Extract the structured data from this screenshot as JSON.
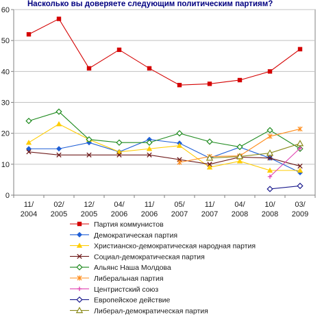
{
  "chart_data": {
    "type": "line",
    "title": "Насколько вы доверяете следующим политическим партиям?",
    "categories": [
      [
        "11/",
        "2004"
      ],
      [
        "02/",
        "2005"
      ],
      [
        "12/",
        "2005"
      ],
      [
        "04/",
        "2006"
      ],
      [
        "11/",
        "2006"
      ],
      [
        "05/",
        "2007"
      ],
      [
        "11/",
        "2007"
      ],
      [
        "04/",
        "2008"
      ],
      [
        "10/",
        "2008"
      ],
      [
        "03/",
        "2009"
      ]
    ],
    "ylim": [
      0,
      60
    ],
    "yticks": [
      0,
      10,
      20,
      30,
      40,
      50,
      60
    ],
    "grid": true,
    "legend_position": "bottom",
    "series": [
      {
        "name": "Партия коммунистов",
        "color": "#d40000",
        "marker": "square",
        "values": [
          52,
          57,
          41,
          47,
          41,
          35.6,
          36,
          37.2,
          40,
          47.2
        ]
      },
      {
        "name": "Демократическая партия",
        "color": "#1f5fd6",
        "marker": "diamond",
        "values": [
          15,
          15,
          17,
          14,
          18,
          16.8,
          12,
          15.5,
          12,
          7.3
        ]
      },
      {
        "name": "Христианско-демократическая народная партия",
        "color": "#ffcc00",
        "marker": "triangle",
        "values": [
          17,
          23,
          18,
          14,
          15,
          16,
          9,
          11,
          8,
          8
        ]
      },
      {
        "name": "Социал-демократическая партия",
        "color": "#6e1b1b",
        "marker": "x",
        "values": [
          14,
          13,
          13,
          13,
          13,
          11.5,
          10,
          12.3,
          12,
          9.4
        ]
      },
      {
        "name": "Альянс Наша Молдова",
        "color": "#1e8a1e",
        "marker": "open-diamond",
        "values": [
          24,
          27,
          18,
          17,
          17,
          20,
          17.3,
          15.6,
          21,
          15
        ]
      },
      {
        "name": "Либеральная партия",
        "color": "#ff8c1a",
        "marker": "star",
        "values": [
          null,
          null,
          null,
          null,
          null,
          10.6,
          12.5,
          12.7,
          19,
          21.4
        ]
      },
      {
        "name": "Центристский союз",
        "color": "#e040b0",
        "marker": "plus",
        "values": [
          null,
          null,
          null,
          null,
          null,
          null,
          null,
          null,
          6,
          15.2
        ]
      },
      {
        "name": "Европейское действие",
        "color": "#1a1a8c",
        "marker": "open-diamond",
        "values": [
          null,
          null,
          null,
          null,
          null,
          null,
          null,
          null,
          2,
          3
        ]
      },
      {
        "name": "Либерал-демократическая партия",
        "color": "#8a8a1a",
        "marker": "open-triangle",
        "values": [
          null,
          null,
          null,
          null,
          null,
          null,
          12,
          12.5,
          13.6,
          16.7
        ]
      }
    ]
  }
}
